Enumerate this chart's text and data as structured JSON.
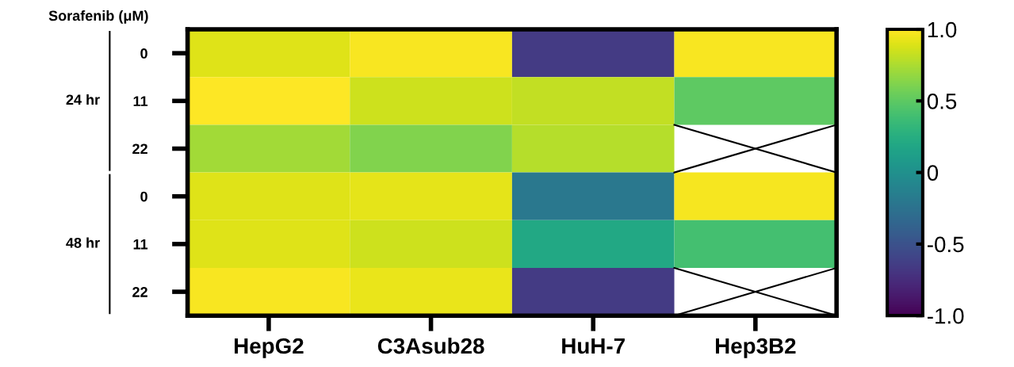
{
  "chart_data": {
    "type": "heatmap",
    "ylabel": "Sorafenib (μM)",
    "categories": [
      "HepG2",
      "C3Asub28",
      "HuH-7",
      "Hep3B2"
    ],
    "y_categories": [
      "0",
      "11",
      "22",
      "0",
      "11",
      "22"
    ],
    "cells": [
      [
        0.9,
        0.98,
        -0.65,
        0.98
      ],
      [
        1.0,
        0.85,
        0.82,
        0.5
      ],
      [
        0.72,
        0.62,
        0.78,
        null
      ],
      [
        0.9,
        0.92,
        -0.2,
        0.97
      ],
      [
        0.9,
        0.85,
        0.2,
        0.4
      ],
      [
        0.98,
        0.93,
        -0.65,
        null
      ]
    ],
    "clim": [
      -1,
      1
    ],
    "cticks": [
      {
        "value": 1,
        "label": "1.0"
      },
      {
        "value": 0.5,
        "label": "0.5"
      },
      0,
      {
        "value": -0.5,
        "label": "-0.5"
      },
      {
        "value": -1,
        "label": "-1.0"
      }
    ],
    "annotations": [
      "24 hr",
      "48 hr"
    ],
    "grid": false
  }
}
